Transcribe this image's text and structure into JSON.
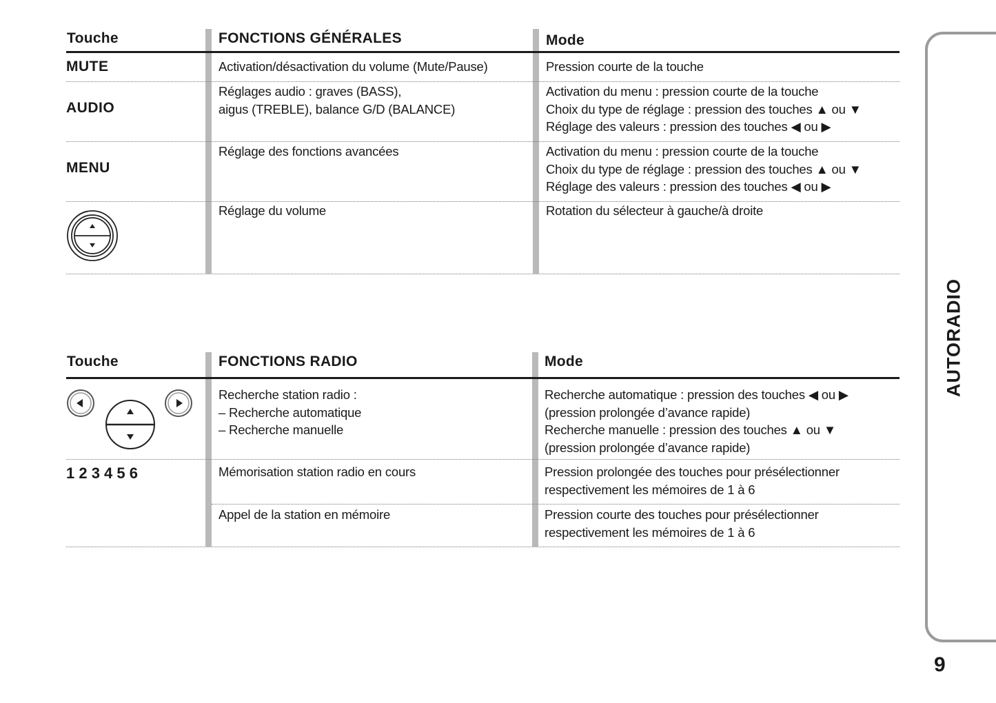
{
  "table1": {
    "headers": {
      "key": "Touche",
      "function": "FONCTIONS GÉNÉRALES",
      "mode": "Mode"
    },
    "rows": [
      {
        "key": "MUTE",
        "function": [
          "Activation/désactivation du volume (Mute/Pause)"
        ],
        "mode": [
          "Pression courte de la touche"
        ]
      },
      {
        "key": "AUDIO",
        "function": [
          "Réglages audio : graves (BASS),",
          "aigus (TREBLE), balance G/D (BALANCE)"
        ],
        "mode": [
          "Activation du menu : pression courte de la touche",
          "Choix du type de réglage : pression des touches ▲ ou ▼",
          "Réglage des valeurs : pression des touches ◀ ou ▶"
        ]
      },
      {
        "key": "MENU",
        "function": [
          "Réglage des fonctions avancées"
        ],
        "mode": [
          "Activation du menu : pression courte de la touche",
          "Choix du type de réglage : pression des touches ▲ ou ▼",
          "Réglage des valeurs : pression des touches ◀ ou ▶"
        ]
      },
      {
        "key_icon": "volume-knob-icon",
        "function": [
          "Réglage du volume"
        ],
        "mode": [
          "Rotation du sélecteur à gauche/à droite"
        ]
      }
    ]
  },
  "table2": {
    "headers": {
      "key": "Touche",
      "function": "FONCTIONS RADIO",
      "mode": "Mode"
    },
    "rows": [
      {
        "key_icon": "seek-buttons-icon",
        "function": [
          "Recherche station radio :",
          "– Recherche automatique",
          "– Recherche manuelle"
        ],
        "mode": [
          "Recherche automatique : pression des touches ◀ ou ▶",
          "(pression prolongée d’avance rapide)",
          "Recherche manuelle : pression des touches ▲ ou ▼",
          "(pression prolongée d’avance rapide)"
        ]
      },
      {
        "key": "1 2 3 4 5 6",
        "function": [
          "Mémorisation station radio en cours"
        ],
        "mode": [
          "Pression prolongée des touches pour présélectionner",
          "respectivement les mémoires de 1 à 6"
        ]
      },
      {
        "function": [
          "Appel de la station en mémoire"
        ],
        "mode": [
          "Pression courte des touches pour présélectionner",
          "respectivement les mémoires de 1 à 6"
        ]
      }
    ]
  },
  "side_tab": {
    "label": "AUTORADIO"
  },
  "page_number": "9"
}
